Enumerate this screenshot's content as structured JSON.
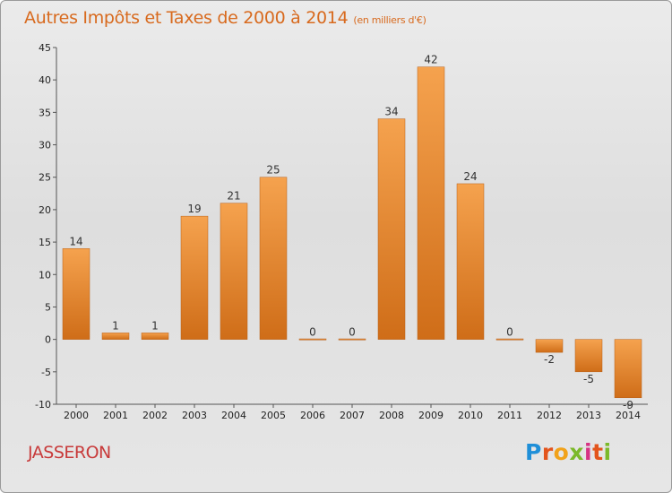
{
  "header": {
    "title": "Autres Impôts et Taxes de 2000 à 2014",
    "subtitle": "(en milliers d'€)"
  },
  "footer": {
    "place": "JASSERON",
    "logo": "Proxiti"
  },
  "colors": {
    "bar_light": "#f5a24e",
    "bar_dark": "#cf6d18",
    "title": "#d86a1e",
    "place": "#c83a3a"
  },
  "chart_data": {
    "type": "bar",
    "title": "Autres Impôts et Taxes de 2000 à 2014",
    "subtitle": "(en milliers d'€)",
    "xlabel": "",
    "ylabel": "",
    "ylim": [
      -10,
      45
    ],
    "yticks": [
      -10,
      -5,
      0,
      5,
      10,
      15,
      20,
      25,
      30,
      35,
      40,
      45
    ],
    "grid": false,
    "categories": [
      "2000",
      "2001",
      "2002",
      "2003",
      "2004",
      "2005",
      "2006",
      "2007",
      "2008",
      "2009",
      "2010",
      "2011",
      "2012",
      "2013",
      "2014"
    ],
    "values": [
      14,
      1,
      1,
      19,
      21,
      25,
      0,
      0,
      34,
      42,
      24,
      0,
      -2,
      -5,
      -9
    ],
    "data_labels": [
      "14",
      "1",
      "1",
      "19",
      "21",
      "25",
      "0",
      "0",
      "34",
      "42",
      "24",
      "0",
      "-2",
      "-5",
      "-9"
    ]
  }
}
